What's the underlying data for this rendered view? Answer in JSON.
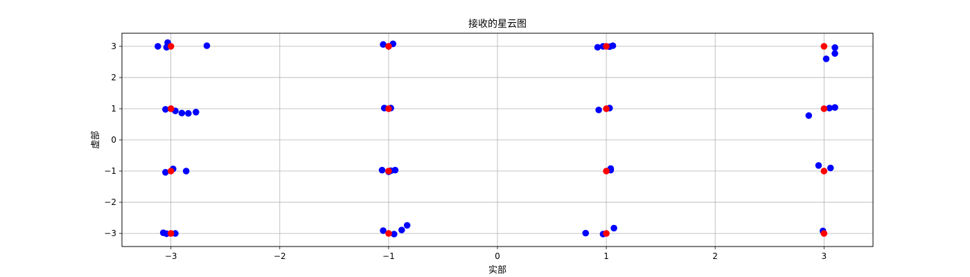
{
  "chart_data": {
    "type": "scatter",
    "title": "接收的星云图",
    "xlabel": "实部",
    "ylabel": "虚部",
    "xlim": [
      -3.45,
      3.45
    ],
    "ylim": [
      -3.42,
      3.42
    ],
    "grid": true,
    "x_ticks": [
      -3,
      -2,
      -1,
      0,
      1,
      2,
      3
    ],
    "y_ticks": [
      -3,
      -2,
      -1,
      0,
      1,
      2,
      3
    ],
    "x_tick_labels": [
      "−3",
      "−2",
      "−1",
      "0",
      "1",
      "2",
      "3"
    ],
    "y_tick_labels": [
      "−3",
      "−2",
      "−1",
      "0",
      "1",
      "2",
      "3"
    ],
    "series": [
      {
        "color": "#0000ff",
        "points": [
          [
            -3.12,
            3.0
          ],
          [
            -3.03,
            3.12
          ],
          [
            -3.04,
            2.97
          ],
          [
            -2.67,
            3.02
          ],
          [
            -1.05,
            3.06
          ],
          [
            -0.96,
            3.08
          ],
          [
            -1.0,
            3.0
          ],
          [
            0.92,
            2.97
          ],
          [
            0.97,
            3.0
          ],
          [
            1.03,
            2.99
          ],
          [
            1.06,
            3.02
          ],
          [
            3.1,
            2.96
          ],
          [
            3.1,
            2.77
          ],
          [
            3.02,
            2.6
          ],
          [
            -3.05,
            0.98
          ],
          [
            -3.0,
            1.0
          ],
          [
            -2.96,
            0.93
          ],
          [
            -2.9,
            0.86
          ],
          [
            -2.84,
            0.85
          ],
          [
            -2.77,
            0.89
          ],
          [
            -1.04,
            1.02
          ],
          [
            -0.98,
            1.02
          ],
          [
            0.93,
            0.96
          ],
          [
            1.03,
            1.02
          ],
          [
            2.86,
            0.78
          ],
          [
            3.05,
            1.02
          ],
          [
            3.1,
            1.04
          ],
          [
            -3.05,
            -1.04
          ],
          [
            -2.98,
            -0.93
          ],
          [
            -2.86,
            -1.0
          ],
          [
            -1.06,
            -0.97
          ],
          [
            -1.0,
            -1.02
          ],
          [
            -0.98,
            -0.99
          ],
          [
            -0.94,
            -0.97
          ],
          [
            1.04,
            -0.97
          ],
          [
            1.04,
            -0.92
          ],
          [
            2.95,
            -0.82
          ],
          [
            3.06,
            -0.9
          ],
          [
            -3.07,
            -2.98
          ],
          [
            -3.04,
            -3.01
          ],
          [
            -2.96,
            -3.0
          ],
          [
            -1.05,
            -2.91
          ],
          [
            -0.95,
            -3.02
          ],
          [
            -0.88,
            -2.89
          ],
          [
            -0.83,
            -2.74
          ],
          [
            0.81,
            -2.99
          ],
          [
            0.97,
            -3.02
          ],
          [
            1.07,
            -2.83
          ],
          [
            2.99,
            -2.92
          ]
        ]
      },
      {
        "color": "#ff0000",
        "points": [
          [
            -3,
            3
          ],
          [
            -1,
            3
          ],
          [
            1,
            3
          ],
          [
            3,
            3
          ],
          [
            -3,
            1
          ],
          [
            -1,
            1
          ],
          [
            1,
            1
          ],
          [
            3,
            1
          ],
          [
            -3,
            -1
          ],
          [
            -1,
            -1
          ],
          [
            1,
            -1
          ],
          [
            3,
            -1
          ],
          [
            -3,
            -3
          ],
          [
            -1,
            -3
          ],
          [
            1,
            -3
          ],
          [
            3,
            -3
          ]
        ]
      }
    ]
  }
}
